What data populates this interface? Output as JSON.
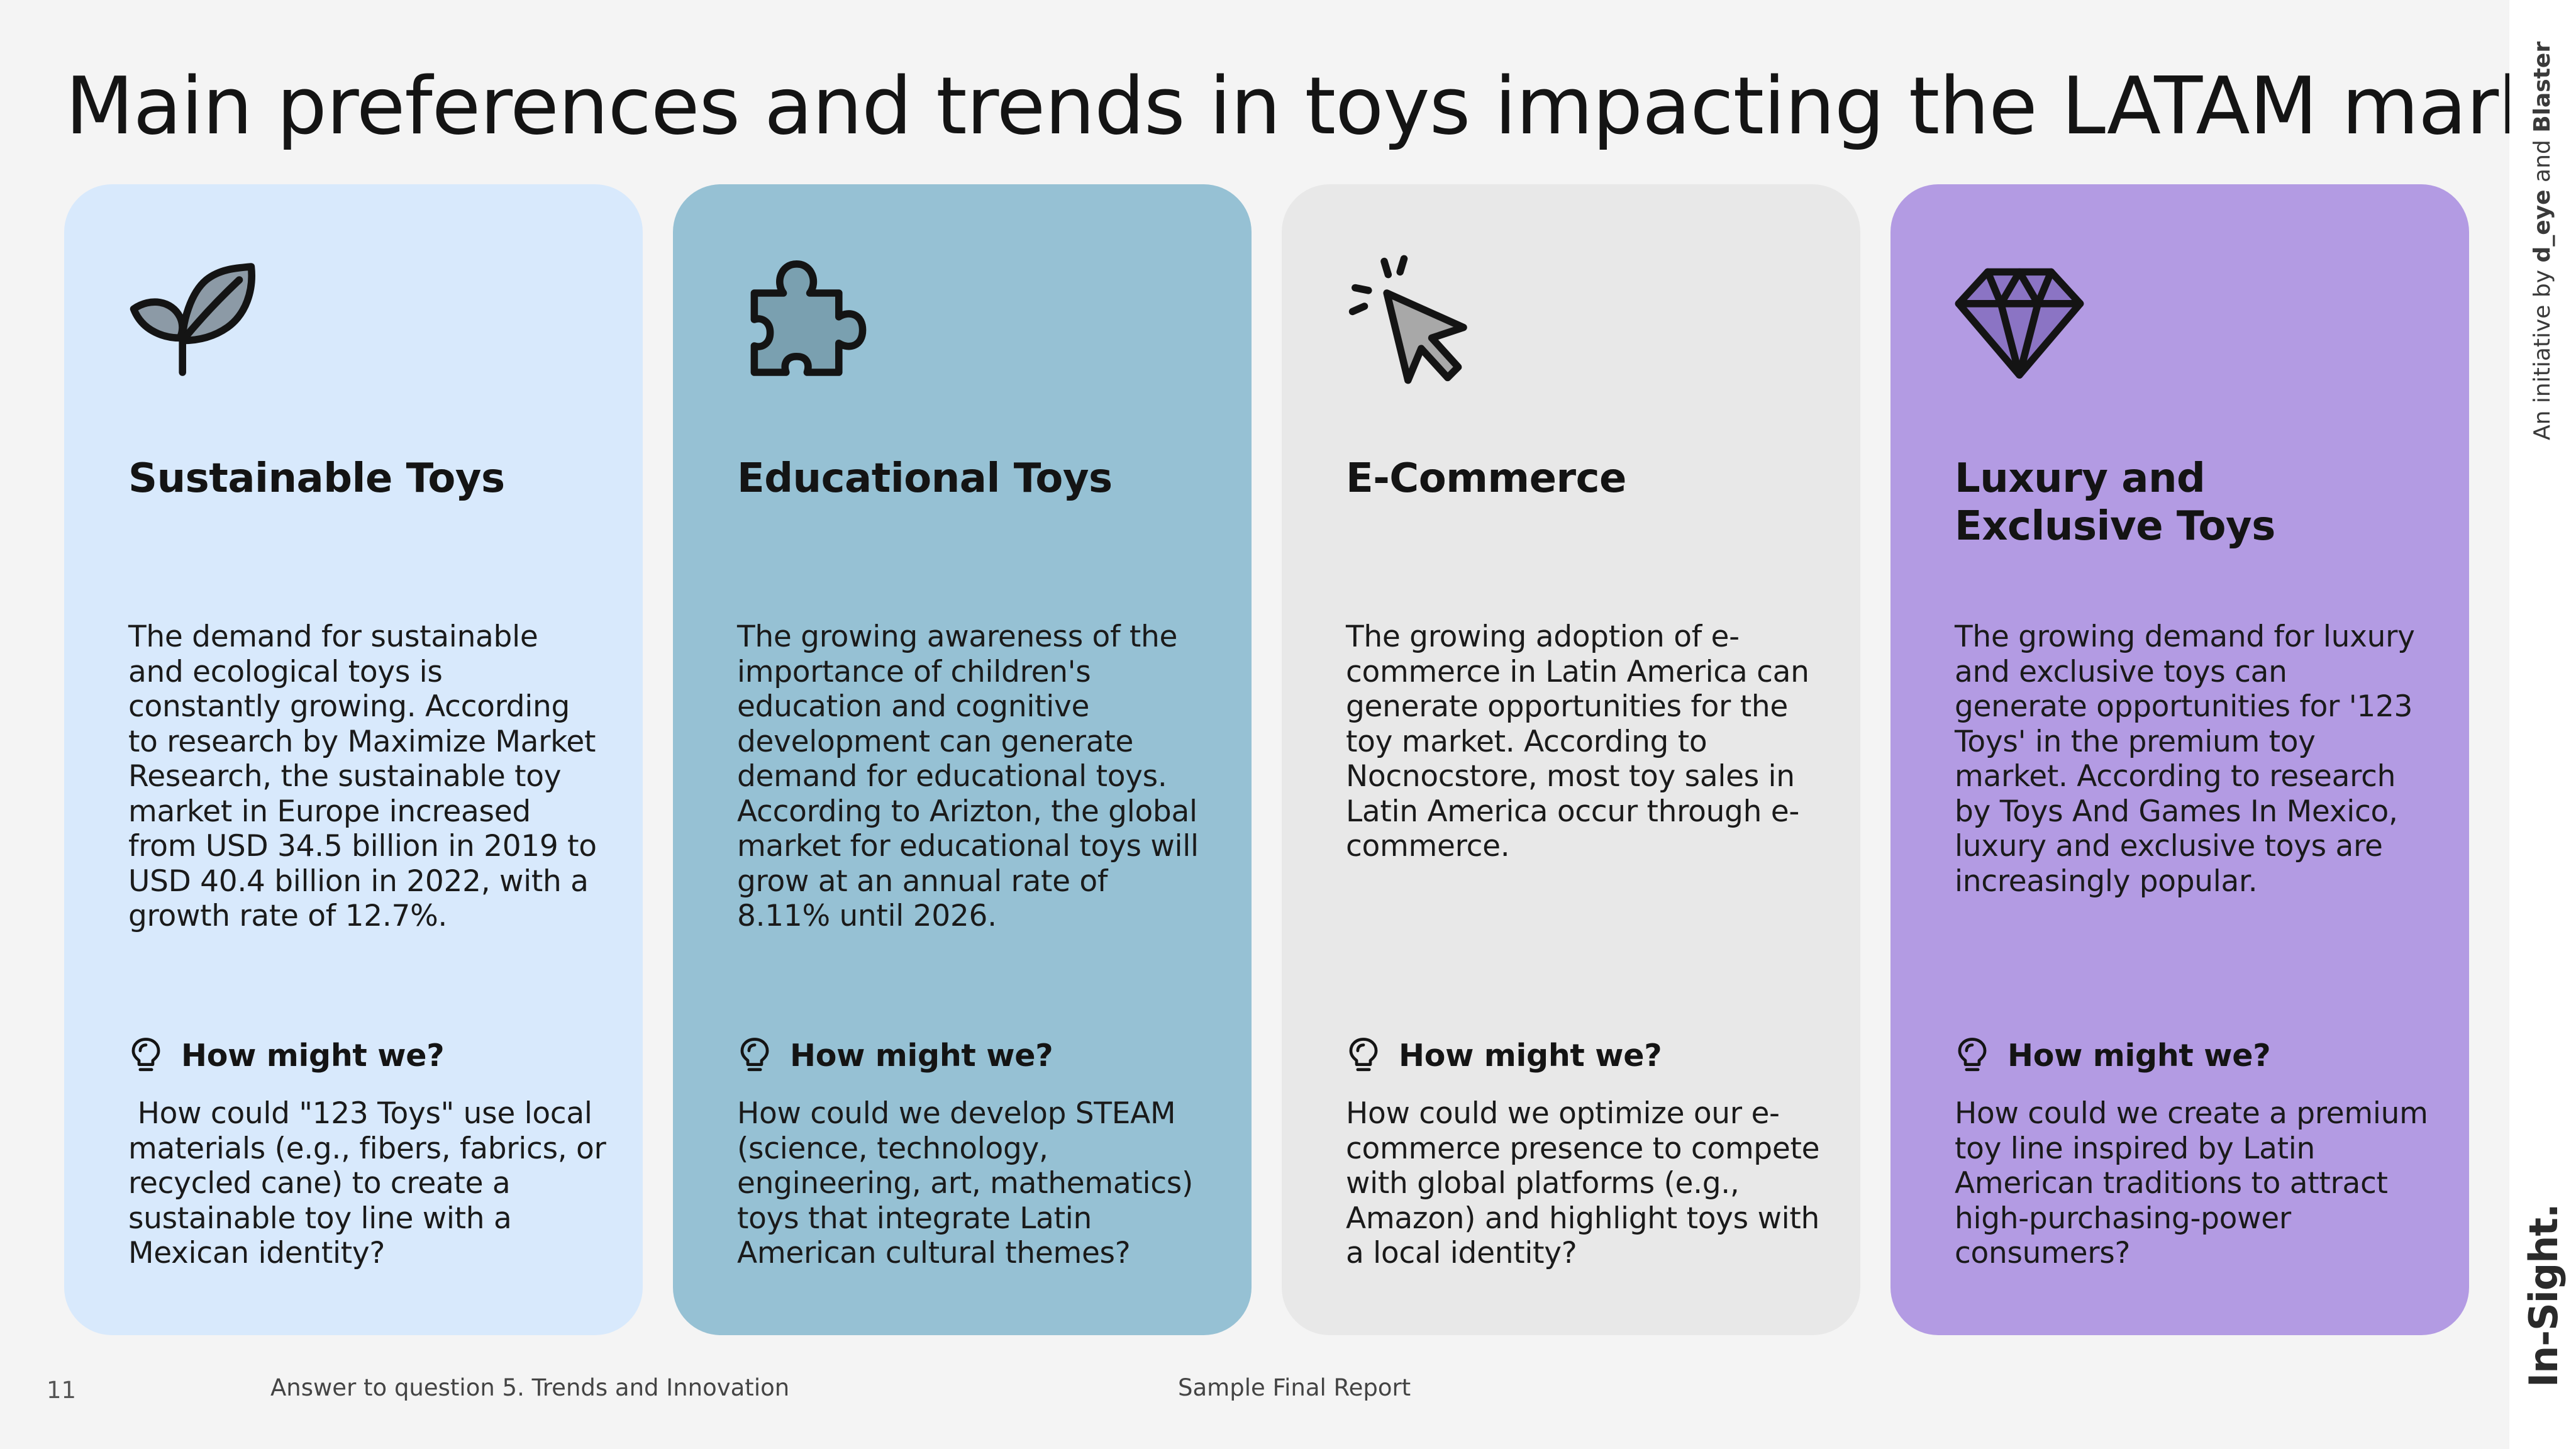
{
  "title": "Main preferences and trends in toys impacting the LATAM market",
  "cards": [
    {
      "heading": "Sustainable Toys",
      "icon": "sprout-leaves-icon",
      "color": "#d8e9fc",
      "body": "The demand for sustainable and ecological toys is constantly growing. According to research by Maximize Market Research, the sustainable toy market in Europe increased from USD 34.5 billion in 2019 to USD 40.4 billion in 2022, with a growth rate of 12.7%.",
      "hmw_label": "How might we?",
      "question": " How could \"123 Toys\" use local materials (e.g., fibers, fabrics, or recycled cane) to create a sustainable toy line with a Mexican identity?"
    },
    {
      "heading": "Educational Toys",
      "icon": "puzzle-piece-icon",
      "color": "#96c1d4",
      "body": "The growing awareness of the importance of children's education and cognitive development can generate demand for educational toys. According to Arizton, the global market for educational toys will grow at an annual rate of 8.11% until 2026.",
      "hmw_label": "How might we?",
      "question": "How could we develop STEAM (science, technology, engineering, art, mathematics) toys that integrate Latin American cultural themes?"
    },
    {
      "heading": "E-Commerce",
      "icon": "cursor-click-icon",
      "color": "#e8e8e8",
      "body": "The growing adoption of e-commerce in Latin America can generate opportunities for the toy market. According to Nocnocstore, most toy sales in Latin America occur through e-commerce.",
      "hmw_label": "How might we?",
      "question": "How could we optimize our e-commerce presence to compete with global platforms (e.g., Amazon) and highlight toys with a local identity?"
    },
    {
      "heading": "Luxury and Exclusive Toys",
      "icon": "diamond-icon",
      "color": "#b39be3",
      "body": "The growing demand for luxury and exclusive toys can generate opportunities for '123 Toys' in the premium toy market. According to research by Toys And Games In Mexico, luxury and exclusive toys are increasingly popular.",
      "hmw_label": "How might we?",
      "question": "How could we create a premium toy line inspired by Latin American traditions to attract high-purchasing-power consumers?"
    }
  ],
  "footer": {
    "page_number": "11",
    "section": "Answer to question 5. Trends and Innovation",
    "center": "Sample Final Report"
  },
  "sidebar": {
    "initiative_prefix": "An initiative by ",
    "initiative_name": "d_eye",
    "initiative_and": " and ",
    "initiative_partner": "Blaster",
    "logo": "In-Sight."
  }
}
